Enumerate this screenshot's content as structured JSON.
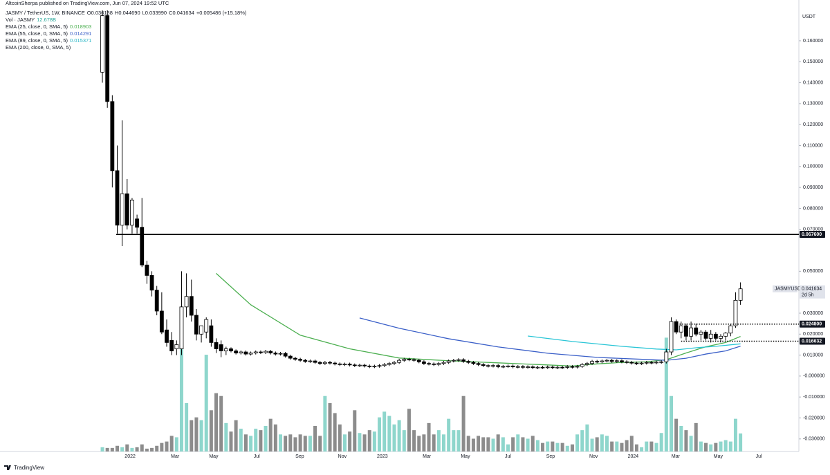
{
  "page": {
    "published": "AltcoinSherpa published on TradingView.com, Jun 07, 2024 19:52 UTC",
    "logo": "TradingView"
  },
  "chart_data": {
    "type": "candlestick",
    "symbol": "JASMY / TetherUS, 1W, BINANCE",
    "header_labels": {
      "o": "O",
      "open": "0.036138",
      "h": "H",
      "high": "0.044690",
      "l": "L",
      "low": "0.033990",
      "c": "C",
      "close": "0.041634",
      "change": "+0.005486 (+15.18%)"
    },
    "y_axis_label": "USDT",
    "up_color": "#ffffff",
    "down_color": "#000000",
    "wick_color": "#000000",
    "ohlc": [
      [
        0.145,
        0.18,
        0.14,
        0.172
      ],
      [
        0.172,
        0.178,
        0.128,
        0.131
      ],
      [
        0.131,
        0.134,
        0.09,
        0.098
      ],
      [
        0.098,
        0.11,
        0.068,
        0.072
      ],
      [
        0.072,
        0.122,
        0.062,
        0.087
      ],
      [
        0.087,
        0.094,
        0.07,
        0.072
      ],
      [
        0.072,
        0.085,
        0.068,
        0.084
      ],
      [
        0.075,
        0.077,
        0.068,
        0.071
      ],
      [
        0.071,
        0.085,
        0.052,
        0.053
      ],
      [
        0.053,
        0.055,
        0.044,
        0.048
      ],
      [
        0.048,
        0.05,
        0.038,
        0.041
      ],
      [
        0.041,
        0.043,
        0.029,
        0.031
      ],
      [
        0.031,
        0.04,
        0.02,
        0.021
      ],
      [
        0.022,
        0.027,
        0.014,
        0.016
      ],
      [
        0.017,
        0.021,
        0.01,
        0.012
      ],
      [
        0.013,
        0.017,
        0.01,
        0.015
      ],
      [
        0.013,
        0.05,
        0.01,
        0.033
      ],
      [
        0.033,
        0.049,
        0.028,
        0.038
      ],
      [
        0.038,
        0.046,
        0.026,
        0.029
      ],
      [
        0.029,
        0.032,
        0.017,
        0.02
      ],
      [
        0.02,
        0.024,
        0.016,
        0.024
      ],
      [
        0.021,
        0.028,
        0.018,
        0.027
      ],
      [
        0.024,
        0.027,
        0.014,
        0.016
      ],
      [
        0.016,
        0.018,
        0.011,
        0.013
      ],
      [
        0.015,
        0.017,
        0.009,
        0.012
      ],
      [
        0.012,
        0.014,
        0.01,
        0.013
      ],
      [
        0.013,
        0.0137,
        0.0113,
        0.012
      ],
      [
        0.012,
        0.0127,
        0.0103,
        0.011
      ],
      [
        0.011,
        0.0122,
        0.0103,
        0.0115
      ],
      [
        0.0115,
        0.0122,
        0.0098,
        0.0105
      ],
      [
        0.0105,
        0.0117,
        0.0098,
        0.011
      ],
      [
        0.011,
        0.0122,
        0.0103,
        0.0115
      ],
      [
        0.0115,
        0.0122,
        0.0105,
        0.0112
      ],
      [
        0.0112,
        0.0125,
        0.0105,
        0.0118
      ],
      [
        0.0118,
        0.0125,
        0.0103,
        0.011
      ],
      [
        0.011,
        0.0117,
        0.0098,
        0.0105
      ],
      [
        0.0105,
        0.0115,
        0.0098,
        0.0108
      ],
      [
        0.0108,
        0.0115,
        0.0088,
        0.0095
      ],
      [
        0.0095,
        0.0102,
        0.0078,
        0.0085
      ],
      [
        0.0085,
        0.0092,
        0.0073,
        0.008
      ],
      [
        0.008,
        0.0087,
        0.0068,
        0.0075
      ],
      [
        0.0075,
        0.0082,
        0.0063,
        0.007
      ],
      [
        0.007,
        0.0079,
        0.0063,
        0.0072
      ],
      [
        0.0072,
        0.0079,
        0.0058,
        0.0065
      ],
      [
        0.0065,
        0.0072,
        0.0053,
        0.006
      ],
      [
        0.006,
        0.0072,
        0.0053,
        0.0065
      ],
      [
        0.0065,
        0.0072,
        0.0055,
        0.0062
      ],
      [
        0.0062,
        0.0069,
        0.0051,
        0.0058
      ],
      [
        0.0058,
        0.0065,
        0.0048,
        0.0055
      ],
      [
        0.0055,
        0.0064,
        0.0048,
        0.0057
      ],
      [
        0.0057,
        0.0064,
        0.0046,
        0.0053
      ],
      [
        0.0053,
        0.006,
        0.0043,
        0.005
      ],
      [
        0.005,
        0.0059,
        0.0043,
        0.0052
      ],
      [
        0.0052,
        0.0059,
        0.0041,
        0.0048
      ],
      [
        0.0048,
        0.0055,
        0.0038,
        0.0045
      ],
      [
        0.0045,
        0.0054,
        0.0038,
        0.0047
      ],
      [
        0.0047,
        0.0057,
        0.004,
        0.005
      ],
      [
        0.005,
        0.0062,
        0.0043,
        0.0055
      ],
      [
        0.0055,
        0.0067,
        0.0048,
        0.006
      ],
      [
        0.006,
        0.0072,
        0.0053,
        0.0065
      ],
      [
        0.0065,
        0.0082,
        0.0058,
        0.0075
      ],
      [
        0.0075,
        0.0087,
        0.0068,
        0.008
      ],
      [
        0.008,
        0.0087,
        0.0071,
        0.0078
      ],
      [
        0.0078,
        0.0085,
        0.0068,
        0.0075
      ],
      [
        0.0075,
        0.0082,
        0.0061,
        0.0068
      ],
      [
        0.0068,
        0.0075,
        0.0053,
        0.006
      ],
      [
        0.006,
        0.0067,
        0.0051,
        0.0058
      ],
      [
        0.0058,
        0.0065,
        0.0048,
        0.0055
      ],
      [
        0.0055,
        0.0067,
        0.0048,
        0.006
      ],
      [
        0.006,
        0.0072,
        0.0053,
        0.0065
      ],
      [
        0.0065,
        0.0079,
        0.0058,
        0.0072
      ],
      [
        0.0072,
        0.0082,
        0.0065,
        0.0075
      ],
      [
        0.0075,
        0.0085,
        0.0068,
        0.0078
      ],
      [
        0.0078,
        0.0085,
        0.0063,
        0.007
      ],
      [
        0.007,
        0.0077,
        0.0058,
        0.0065
      ],
      [
        0.0065,
        0.0072,
        0.0053,
        0.006
      ],
      [
        0.006,
        0.0067,
        0.0048,
        0.0055
      ],
      [
        0.0055,
        0.0062,
        0.0043,
        0.005
      ],
      [
        0.005,
        0.0057,
        0.0041,
        0.0048
      ],
      [
        0.0048,
        0.0057,
        0.0041,
        0.005
      ],
      [
        0.005,
        0.0057,
        0.0038,
        0.0045
      ],
      [
        0.0045,
        0.0053,
        0.0038,
        0.0046
      ],
      [
        0.0046,
        0.0055,
        0.0039,
        0.0048
      ],
      [
        0.0048,
        0.0055,
        0.0037,
        0.0044
      ],
      [
        0.0044,
        0.0052,
        0.0037,
        0.0045
      ],
      [
        0.0045,
        0.0052,
        0.0035,
        0.0042
      ],
      [
        0.0042,
        0.0051,
        0.0035,
        0.0044
      ],
      [
        0.0044,
        0.0051,
        0.0033,
        0.004
      ],
      [
        0.004,
        0.0049,
        0.0033,
        0.0042
      ],
      [
        0.0042,
        0.0049,
        0.0034,
        0.0041
      ],
      [
        0.0041,
        0.005,
        0.0034,
        0.0043
      ],
      [
        0.0043,
        0.005,
        0.0033,
        0.004
      ],
      [
        0.004,
        0.0049,
        0.0033,
        0.0042
      ],
      [
        0.0042,
        0.0049,
        0.0034,
        0.0041
      ],
      [
        0.0041,
        0.0052,
        0.0034,
        0.0045
      ],
      [
        0.0045,
        0.0052,
        0.0036,
        0.0043
      ],
      [
        0.0043,
        0.0053,
        0.0036,
        0.0046
      ],
      [
        0.0046,
        0.0062,
        0.0039,
        0.0055
      ],
      [
        0.0055,
        0.0067,
        0.0048,
        0.006
      ],
      [
        0.006,
        0.0077,
        0.0053,
        0.007
      ],
      [
        0.007,
        0.0077,
        0.0061,
        0.0068
      ],
      [
        0.0068,
        0.0079,
        0.0061,
        0.0072
      ],
      [
        0.0072,
        0.0082,
        0.0065,
        0.0075
      ],
      [
        0.0075,
        0.0082,
        0.0063,
        0.007
      ],
      [
        0.007,
        0.008,
        0.0063,
        0.0073
      ],
      [
        0.0073,
        0.008,
        0.0061,
        0.0068
      ],
      [
        0.0068,
        0.0075,
        0.0058,
        0.0065
      ],
      [
        0.0065,
        0.0072,
        0.0055,
        0.0062
      ],
      [
        0.0062,
        0.0069,
        0.0053,
        0.006
      ],
      [
        0.006,
        0.0069,
        0.0053,
        0.0062
      ],
      [
        0.0062,
        0.0072,
        0.0055,
        0.0065
      ],
      [
        0.0065,
        0.0072,
        0.0056,
        0.0063
      ],
      [
        0.0063,
        0.0073,
        0.0056,
        0.0066
      ],
      [
        0.0066,
        0.0075,
        0.0059,
        0.0068
      ],
      [
        0.0068,
        0.013,
        0.006,
        0.0115
      ],
      [
        0.0115,
        0.028,
        0.01,
        0.026
      ],
      [
        0.026,
        0.027,
        0.02,
        0.021
      ],
      [
        0.021,
        0.026,
        0.018,
        0.024
      ],
      [
        0.024,
        0.025,
        0.017,
        0.019
      ],
      [
        0.019,
        0.026,
        0.017,
        0.023
      ],
      [
        0.023,
        0.025,
        0.019,
        0.02
      ],
      [
        0.02,
        0.022,
        0.017,
        0.021
      ],
      [
        0.021,
        0.022,
        0.017,
        0.018
      ],
      [
        0.018,
        0.022,
        0.016,
        0.02
      ],
      [
        0.02,
        0.021,
        0.017,
        0.018
      ],
      [
        0.018,
        0.02,
        0.016,
        0.019
      ],
      [
        0.019,
        0.021,
        0.017,
        0.0205
      ],
      [
        0.0205,
        0.025,
        0.019,
        0.024
      ],
      [
        0.024,
        0.04,
        0.023,
        0.036138
      ],
      [
        0.036138,
        0.04469,
        0.03399,
        0.041634
      ]
    ],
    "volume": {
      "name": "Vol · JASMY",
      "value_labels": {
        "129": "12.678B"
      },
      "up_color": "#8ed6cc",
      "down_color": "#8c8c8c",
      "vlim": [
        0,
        310
      ],
      "values": [
        3,
        2.5,
        2.5,
        4,
        3,
        5,
        2.5,
        3,
        5,
        2,
        2.5,
        4,
        6,
        7,
        11,
        10,
        78,
        34,
        22,
        24,
        22,
        68,
        29,
        41,
        39,
        20,
        14,
        22,
        16,
        12,
        11,
        16,
        15,
        18,
        23,
        19,
        12,
        11,
        12,
        10,
        12,
        11,
        11,
        18,
        11,
        39,
        34,
        27,
        19,
        12,
        14,
        29,
        13,
        12,
        15,
        14,
        24,
        28,
        25,
        19,
        22,
        15,
        30,
        15,
        11,
        12,
        20,
        12,
        15,
        12,
        23,
        15,
        15,
        39,
        11,
        9,
        11,
        10,
        10,
        9,
        12,
        10,
        5,
        10,
        12,
        10,
        9,
        11,
        8,
        6,
        7,
        7,
        6,
        6,
        4,
        5,
        12,
        15,
        19,
        9,
        10,
        12,
        11,
        7,
        7,
        6,
        8,
        11,
        5,
        3,
        7,
        7,
        6,
        13,
        80,
        39,
        23,
        18,
        15,
        11,
        20,
        7,
        6,
        5,
        6,
        7,
        8,
        7,
        23,
        12.678
      ]
    },
    "series": [
      {
        "name": "EMA (25, close, 0, SMA, 5)",
        "color": "#4caf50",
        "x": [
          23,
          30,
          40,
          50,
          60,
          70,
          80,
          90,
          95,
          100,
          105,
          110,
          114,
          118,
          122,
          126,
          129
        ],
        "values": [
          0.049,
          0.034,
          0.0195,
          0.013,
          0.0086,
          0.0073,
          0.0063,
          0.0053,
          0.0048,
          0.0058,
          0.0065,
          0.0068,
          0.0078,
          0.011,
          0.014,
          0.016,
          0.018903
        ]
      },
      {
        "name": "EMA (55, close, 0, SMA, 5)",
        "color": "#3a5fc8",
        "x": [
          52,
          60,
          70,
          80,
          90,
          100,
          110,
          114,
          118,
          122,
          126,
          129
        ],
        "values": [
          0.0277,
          0.0228,
          0.0178,
          0.0139,
          0.0109,
          0.0089,
          0.0079,
          0.0075,
          0.0085,
          0.0105,
          0.012,
          0.014291
        ]
      },
      {
        "name": "EMA (89, close, 0, SMA, 5)",
        "color": "#29c5d6",
        "x": [
          86,
          95,
          105,
          112,
          116,
          120,
          124,
          129
        ],
        "values": [
          0.0191,
          0.0165,
          0.0142,
          0.0129,
          0.0125,
          0.0135,
          0.0142,
          0.015371
        ]
      },
      {
        "name": "EMA (200, close, 0, SMA, 5)",
        "color": "#131722",
        "x": [],
        "values": []
      }
    ],
    "hlines": [
      {
        "value": 0.0676,
        "label": "0.067600",
        "x_start": 2.8,
        "style": "solid"
      },
      {
        "value": 0.0248,
        "label": "0.024800",
        "x_start": 115.7,
        "style": "dotted"
      },
      {
        "value": 0.016632,
        "label": "0.016632",
        "x_start": 117,
        "style": "dotted"
      }
    ],
    "last_price": {
      "symbol": "JASMYUSDT",
      "value": 0.041634,
      "countdown": "2d 5h"
    },
    "xlim": [
      -20.7,
      140.8
    ],
    "ylim": [
      -0.036,
      0.1745
    ],
    "grid": false,
    "xticks": [
      {
        "value": 5.6,
        "label": "2022"
      },
      {
        "value": 14.7,
        "label": "Mar"
      },
      {
        "value": 22.5,
        "label": "May"
      },
      {
        "value": 31.2,
        "label": "Jul"
      },
      {
        "value": 39.9,
        "label": "Sep"
      },
      {
        "value": 48.5,
        "label": "Nov"
      },
      {
        "value": 56.6,
        "label": "2023"
      },
      {
        "value": 65.6,
        "label": "Mar"
      },
      {
        "value": 73.4,
        "label": "May"
      },
      {
        "value": 82,
        "label": "Jul"
      },
      {
        "value": 90.6,
        "label": "Sep"
      },
      {
        "value": 99.3,
        "label": "Nov"
      },
      {
        "value": 107.3,
        "label": "2024"
      },
      {
        "value": 115.9,
        "label": "Mar"
      },
      {
        "value": 124.5,
        "label": "May"
      },
      {
        "value": 132.7,
        "label": "Jul"
      }
    ],
    "yticks": [
      {
        "value": 0.16,
        "label": "0.160000"
      },
      {
        "value": 0.15,
        "label": "0.150000"
      },
      {
        "value": 0.14,
        "label": "0.140000"
      },
      {
        "value": 0.13,
        "label": "0.130000"
      },
      {
        "value": 0.12,
        "label": "0.120000"
      },
      {
        "value": 0.11,
        "label": "0.110000"
      },
      {
        "value": 0.1,
        "label": "0.100000"
      },
      {
        "value": 0.09,
        "label": "0.090000"
      },
      {
        "value": 0.08,
        "label": "0.080000"
      },
      {
        "value": 0.07,
        "label": "0.070000"
      },
      {
        "value": 0.05,
        "label": "0.050000"
      },
      {
        "value": 0.03,
        "label": "0.030000"
      },
      {
        "value": 0.02,
        "label": "0.020000"
      },
      {
        "value": 0.01,
        "label": "0.010000"
      },
      {
        "value": 0,
        "label": "-0.000000"
      },
      {
        "value": -0.01,
        "label": "-0.010000"
      },
      {
        "value": -0.02,
        "label": "-0.020000"
      },
      {
        "value": -0.03,
        "label": "-0.030000"
      }
    ]
  }
}
